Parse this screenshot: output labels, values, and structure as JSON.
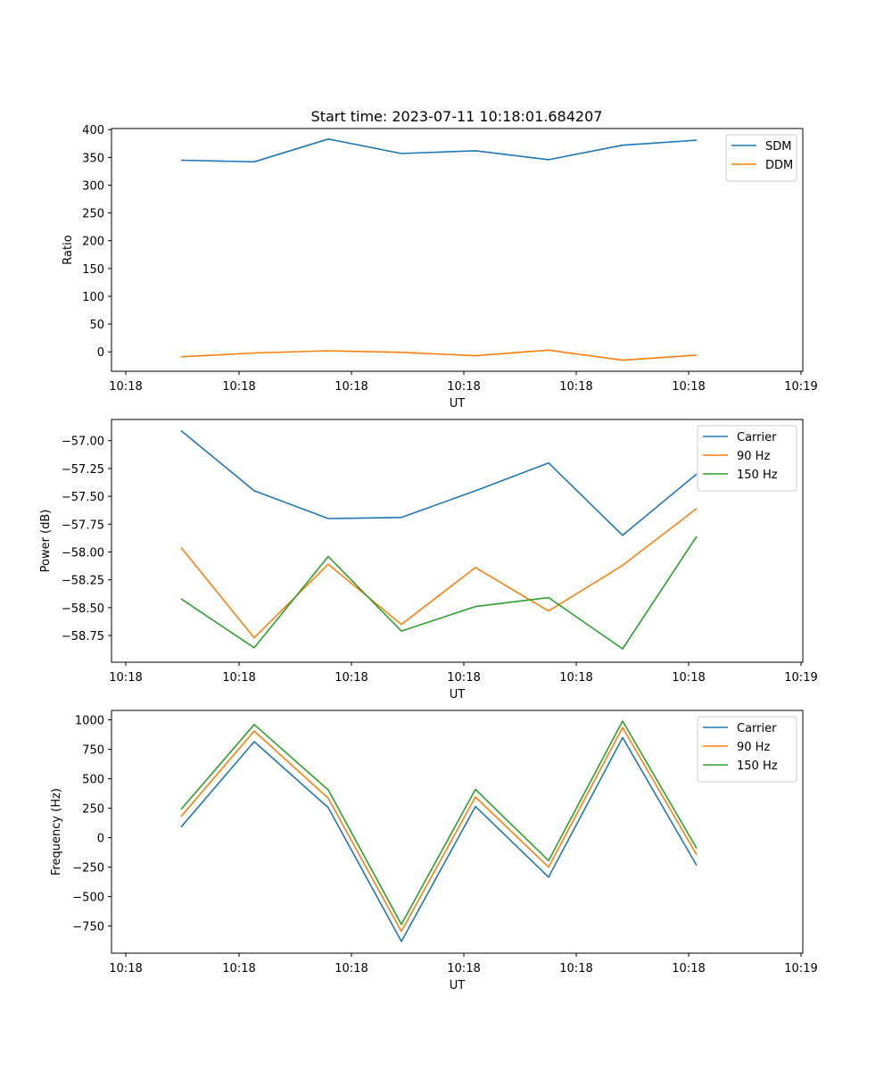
{
  "figure": {
    "title": "Start time: 2023-07-11 10:18:01.684207"
  },
  "chart_data": [
    {
      "type": "line",
      "xlabel": "UT",
      "ylabel": "Ratio",
      "x_tick_labels": [
        "10:18",
        "10:18",
        "10:18",
        "10:18",
        "10:18",
        "10:18",
        "10:19"
      ],
      "ylim": [
        -35,
        402
      ],
      "y_ticks": [
        0,
        50,
        100,
        150,
        200,
        250,
        300,
        350,
        400
      ],
      "y_tick_labels": [
        "0",
        "50",
        "100",
        "150",
        "200",
        "250",
        "300",
        "350",
        "400"
      ],
      "grid": false,
      "legend": "top-right",
      "series": [
        {
          "name": "SDM",
          "color": "#1f77b4",
          "values": [
            345,
            342,
            383,
            357,
            362,
            346,
            372,
            381
          ]
        },
        {
          "name": "DDM",
          "color": "#ff7f0e",
          "values": [
            -9,
            -2,
            2,
            -1,
            -7,
            3,
            -15,
            -6
          ]
        }
      ]
    },
    {
      "type": "line",
      "xlabel": "UT",
      "ylabel": "Power (dB)",
      "x_tick_labels": [
        "10:18",
        "10:18",
        "10:18",
        "10:18",
        "10:18",
        "10:18",
        "10:19"
      ],
      "ylim": [
        -58.99,
        -56.81
      ],
      "y_ticks": [
        -58.75,
        -58.5,
        -58.25,
        -58.0,
        -57.75,
        -57.5,
        -57.25,
        -57.0
      ],
      "y_tick_labels": [
        "−58.75",
        "−58.50",
        "−58.25",
        "−58.00",
        "−57.75",
        "−57.50",
        "−57.25",
        "−57.00"
      ],
      "grid": false,
      "legend": "top-right",
      "series": [
        {
          "name": "Carrier",
          "color": "#1f77b4",
          "values": [
            -56.91,
            -57.45,
            -57.7,
            -57.69,
            -57.45,
            -57.2,
            -57.85,
            -57.3
          ]
        },
        {
          "name": "90 Hz",
          "color": "#ff7f0e",
          "values": [
            -57.96,
            -58.77,
            -58.11,
            -58.65,
            -58.14,
            -58.53,
            -58.12,
            -57.61
          ]
        },
        {
          "name": "150 Hz",
          "color": "#2ca02c",
          "values": [
            -58.42,
            -58.86,
            -58.04,
            -58.71,
            -58.49,
            -58.41,
            -58.87,
            -57.86
          ]
        }
      ]
    },
    {
      "type": "line",
      "xlabel": "UT",
      "ylabel": "Frequency (Hz)",
      "x_tick_labels": [
        "10:18",
        "10:18",
        "10:18",
        "10:18",
        "10:18",
        "10:18",
        "10:19"
      ],
      "ylim": [
        -980,
        1080
      ],
      "y_ticks": [
        -750,
        -500,
        -250,
        0,
        250,
        500,
        750,
        1000
      ],
      "y_tick_labels": [
        "−750",
        "−500",
        "−250",
        "0",
        "250",
        "500",
        "750",
        "1000"
      ],
      "grid": false,
      "legend": "top-right",
      "series": [
        {
          "name": "Carrier",
          "color": "#1f77b4",
          "values": [
            90,
            815,
            255,
            -880,
            265,
            -335,
            850,
            -235
          ]
        },
        {
          "name": "90 Hz",
          "color": "#ff7f0e",
          "values": [
            180,
            905,
            335,
            -795,
            345,
            -250,
            935,
            -145
          ]
        },
        {
          "name": "150 Hz",
          "color": "#2ca02c",
          "values": [
            240,
            960,
            405,
            -735,
            410,
            -195,
            990,
            -90
          ]
        }
      ]
    }
  ]
}
